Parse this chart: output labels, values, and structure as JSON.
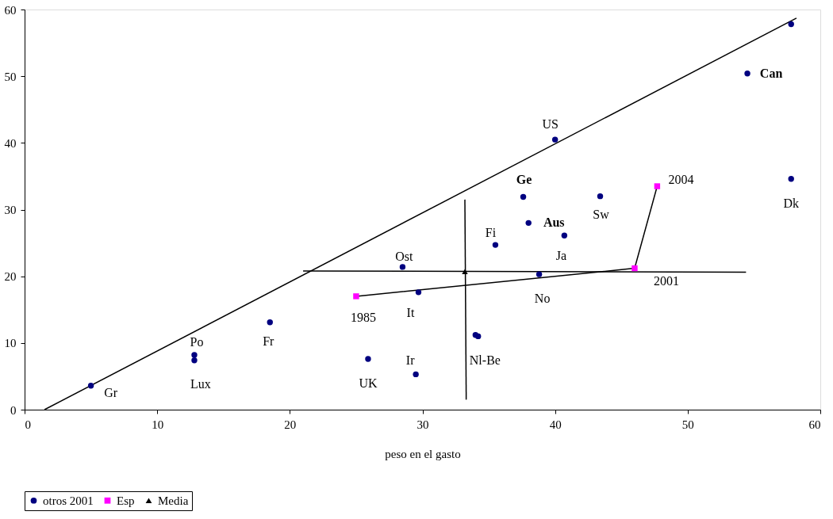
{
  "chart_data": {
    "type": "scatter",
    "xlabel": "peso en el gasto",
    "xlim": [
      0,
      60
    ],
    "ylim": [
      0,
      60
    ],
    "xticks": [
      0,
      10,
      20,
      30,
      40,
      50,
      60
    ],
    "yticks": [
      0,
      10,
      20,
      30,
      40,
      50,
      60
    ],
    "grid": false,
    "legend": "bottom",
    "series": [
      {
        "name": "otros 2001",
        "color": "#000080",
        "marker": "circle",
        "x": [
          5,
          12.8,
          12.8,
          18.5,
          25.9,
          28.5,
          29.7,
          29.5,
          34,
          34.2,
          35.5,
          37.6,
          38,
          38.8,
          40,
          40.7,
          43.4,
          54.5,
          57.8,
          57.8
        ],
        "values": [
          3.6,
          8.2,
          7.4,
          13.1,
          7.6,
          21.4,
          17.6,
          5.3,
          11.2,
          11.0,
          24.7,
          31.9,
          28,
          20.3,
          40.5,
          26.1,
          32,
          50.4,
          34.6,
          57.8
        ]
      },
      {
        "name": "Esp",
        "color": "#ff00ff",
        "marker": "square",
        "x": [
          25,
          46,
          47.7
        ],
        "values": [
          17,
          21.2,
          33.5
        ]
      },
      {
        "name": "Media",
        "color": "#000000",
        "marker": "triangle",
        "x": [
          33.2
        ],
        "values": [
          20.7
        ]
      },
      {
        "type": "line",
        "color": "#000000",
        "x": [
          1.5,
          58.2
        ],
        "values": [
          0,
          58.7
        ]
      },
      {
        "type": "line",
        "color": "#000000",
        "x": [
          21,
          54.4
        ],
        "values": [
          20.8,
          20.6
        ]
      },
      {
        "type": "line",
        "color": "#000000",
        "x": [
          33.2,
          33.3
        ],
        "values": [
          31.5,
          1.5
        ]
      },
      {
        "type": "line",
        "color": "#000000",
        "x": [
          25,
          46,
          47.7
        ],
        "values": [
          17,
          21.2,
          33.5
        ]
      }
    ],
    "annotations": [
      {
        "text": "Gr",
        "x": 5,
        "y": 3.6
      },
      {
        "text": "Po",
        "x": 12.8,
        "y": 8.2
      },
      {
        "text": "Lux",
        "x": 12.8,
        "y": 7.4
      },
      {
        "text": "Fr",
        "x": 18.5,
        "y": 13.1
      },
      {
        "text": "UK",
        "x": 25.9,
        "y": 7.6
      },
      {
        "text": "Ost",
        "x": 28.5,
        "y": 21.4
      },
      {
        "text": "It",
        "x": 29.7,
        "y": 17.6
      },
      {
        "text": "Ir",
        "x": 29.5,
        "y": 5.3
      },
      {
        "text": "Nl-Be",
        "x": 34,
        "y": 11.2
      },
      {
        "text": "Fi",
        "x": 35.5,
        "y": 24.7
      },
      {
        "text": "Ge",
        "x": 37.6,
        "y": 31.9
      },
      {
        "text": "Aus",
        "x": 38,
        "y": 28
      },
      {
        "text": "No",
        "x": 38.8,
        "y": 20.3
      },
      {
        "text": "US",
        "x": 40,
        "y": 40.5
      },
      {
        "text": "Ja",
        "x": 40.7,
        "y": 26.1
      },
      {
        "text": "Sw",
        "x": 43.4,
        "y": 32
      },
      {
        "text": "Can",
        "x": 54.5,
        "y": 50.4
      },
      {
        "text": "Dk",
        "x": 57.8,
        "y": 34.6
      },
      {
        "text": "1985",
        "x": 25,
        "y": 17
      },
      {
        "text": "2001",
        "x": 46,
        "y": 21.2
      },
      {
        "text": "2004",
        "x": 47.7,
        "y": 33.5
      }
    ]
  }
}
